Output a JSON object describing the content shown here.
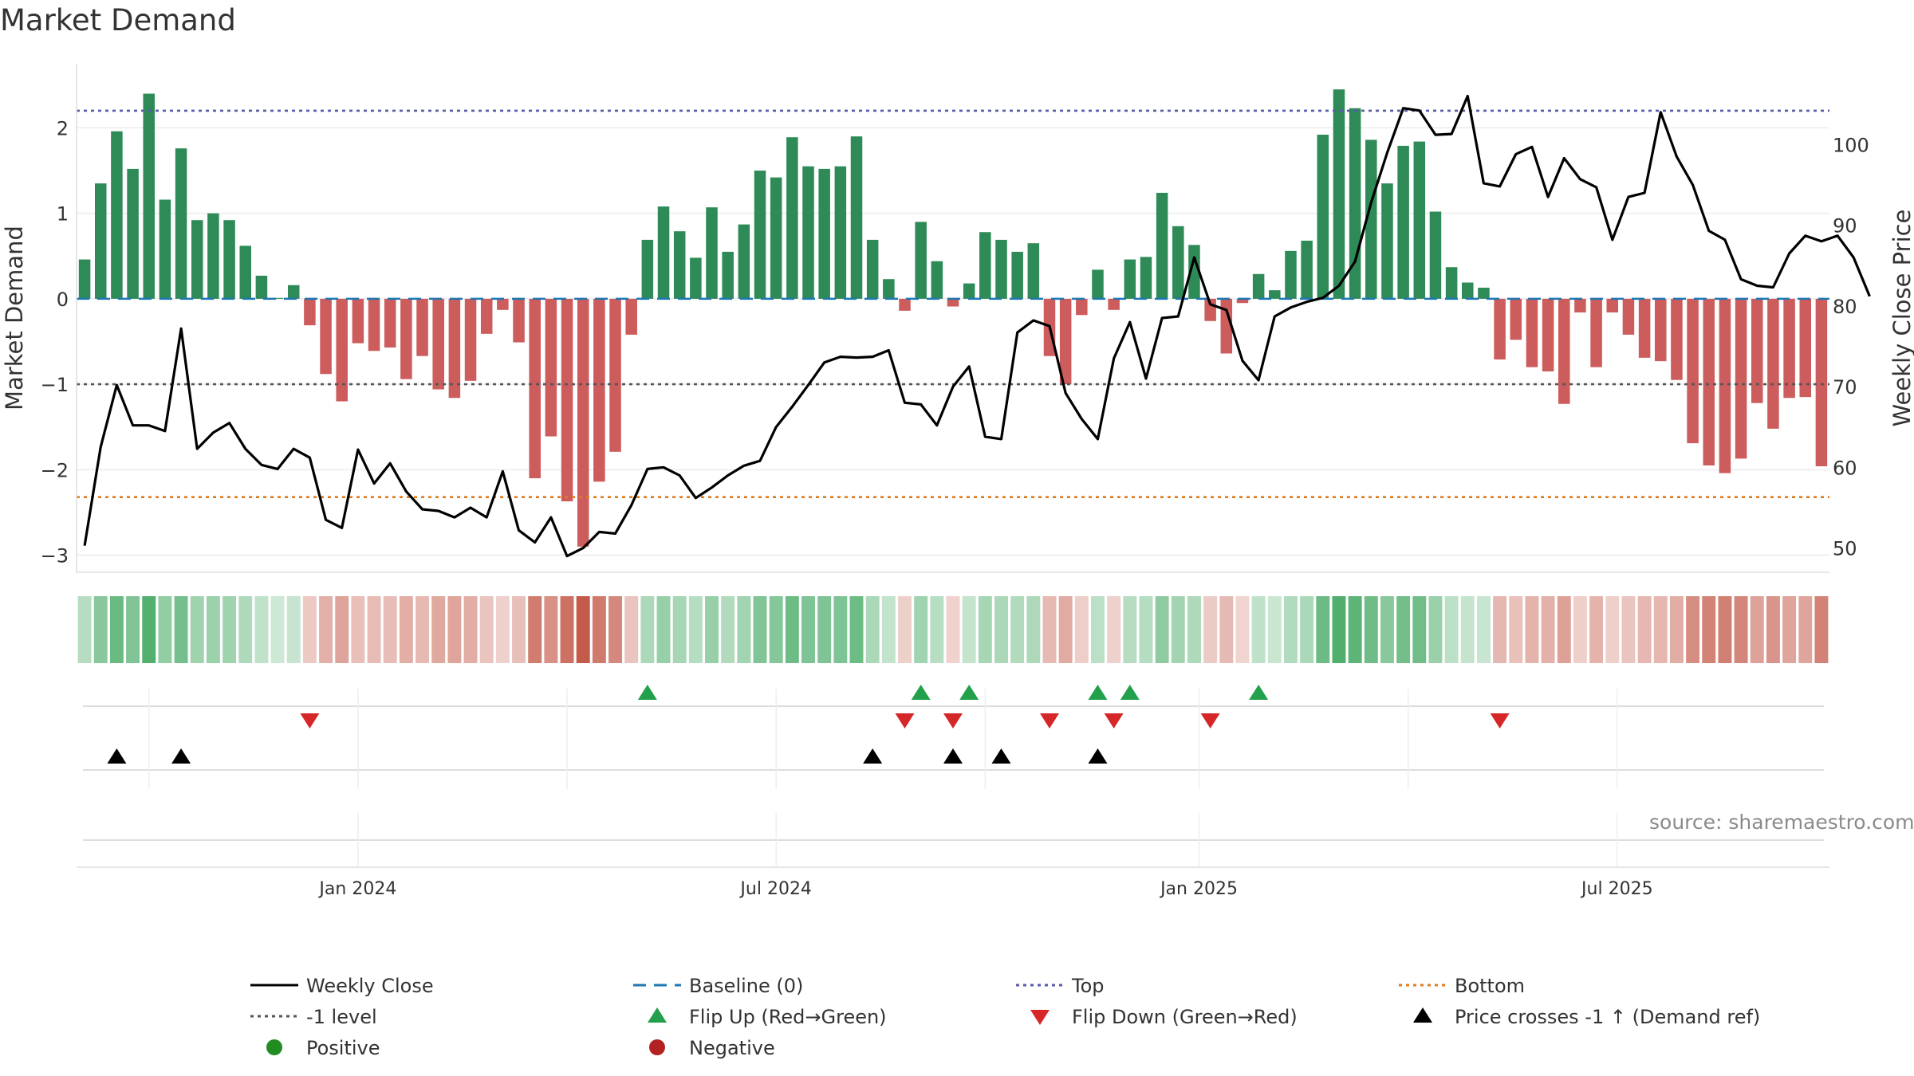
{
  "title": "Market Demand",
  "source": "source: sharemaestro.com",
  "chart_data": {
    "type": "bar",
    "title": "Market Demand",
    "ylabel": "Market Demand",
    "y2label": "Weekly Close Price",
    "ylim": [
      -3.2,
      2.75
    ],
    "y2lim": [
      47,
      110
    ],
    "yticks": [
      -3,
      -2,
      -1,
      0,
      1,
      2
    ],
    "y2ticks": [
      50,
      60,
      70,
      80,
      90,
      100
    ],
    "x_start": "2023-09-10",
    "x_interval": "weekly",
    "xticks": [
      "Jan 2024",
      "Jul 2024",
      "Jan 2025",
      "Jul 2025"
    ],
    "reference_lines": [
      {
        "name": "Baseline (0)",
        "value": 0,
        "color": "#1f77b4",
        "style": "dashed"
      },
      {
        "name": "Top",
        "value": 2.2,
        "color": "#5a5aaa",
        "style": "dotted"
      },
      {
        "name": "-1 level",
        "value": -1,
        "color": "#555555",
        "style": "dotted"
      },
      {
        "name": "Bottom",
        "value": -2.32,
        "color": "#e07b20",
        "style": "dotted"
      }
    ],
    "colors": {
      "positive": "#2e8b57",
      "negative": "#cd5c5c",
      "close": "#000000",
      "flip_up": "#22a04b",
      "flip_down": "#d62728",
      "cross": "#000000",
      "positive_dot": "#228b22",
      "negative_dot": "#b22222"
    },
    "demand": [
      0.46,
      1.35,
      1.96,
      1.52,
      2.4,
      1.16,
      1.76,
      0.92,
      1.0,
      0.92,
      0.62,
      0.27,
      0.01,
      0.16,
      -0.31,
      -0.88,
      -1.2,
      -0.52,
      -0.61,
      -0.57,
      -0.94,
      -0.67,
      -1.06,
      -1.16,
      -0.96,
      -0.41,
      -0.13,
      -0.51,
      -2.1,
      -1.61,
      -2.37,
      -2.9,
      -2.14,
      -1.79,
      -0.42,
      0.69,
      1.08,
      0.79,
      0.48,
      1.07,
      0.55,
      0.87,
      1.5,
      1.42,
      1.89,
      1.55,
      1.52,
      1.55,
      1.9,
      0.69,
      0.23,
      -0.14,
      0.9,
      0.44,
      -0.09,
      0.18,
      0.78,
      0.69,
      0.55,
      0.65,
      -0.67,
      -1.0,
      -0.19,
      0.34,
      -0.13,
      0.46,
      0.49,
      1.24,
      0.85,
      0.63,
      -0.26,
      -0.64,
      -0.05,
      0.29,
      0.1,
      0.56,
      0.68,
      1.92,
      2.45,
      2.23,
      1.86,
      1.35,
      1.79,
      1.84,
      1.02,
      0.37,
      0.19,
      0.13,
      -0.71,
      -0.48,
      -0.8,
      -0.85,
      -1.23,
      -0.16,
      -0.8,
      -0.16,
      -0.42,
      -0.69,
      -0.73,
      -0.95,
      -1.69,
      -1.95,
      -2.04,
      -1.87,
      -1.22,
      -1.52,
      -1.16,
      -1.15,
      -1.96
    ],
    "close": [
      50.3,
      62.5,
      70.2,
      65.2,
      65.2,
      64.5,
      77.2,
      62.3,
      64.3,
      65.5,
      62.3,
      60.3,
      59.8,
      62.3,
      61.2,
      53.5,
      52.5,
      62.2,
      58.0,
      60.5,
      57.0,
      54.8,
      54.6,
      53.8,
      55.0,
      53.8,
      59.5,
      52.2,
      50.7,
      53.8,
      49.0,
      50.0,
      52.0,
      51.8,
      55.3,
      59.8,
      60.0,
      59.0,
      56.2,
      57.5,
      59.0,
      60.2,
      60.8,
      65.0,
      67.5,
      70.2,
      73.0,
      73.7,
      73.6,
      73.7,
      74.5,
      68.0,
      67.8,
      65.2,
      70.0,
      72.5,
      63.8,
      63.5,
      76.7,
      78.2,
      77.5,
      69.2,
      66.0,
      63.5,
      73.5,
      78.0,
      71.0,
      78.5,
      78.7,
      86.0,
      80.2,
      79.5,
      73.2,
      70.8,
      78.7,
      79.8,
      80.5,
      81.0,
      82.5,
      85.5,
      92.8,
      99.0,
      104.5,
      104.2,
      101.2,
      101.3,
      106.0,
      95.2,
      94.8,
      98.8,
      99.7,
      93.5,
      98.3,
      95.7,
      94.7,
      88.2,
      93.5,
      94.0,
      104.0,
      98.5,
      95.0,
      89.3,
      88.2,
      83.3,
      82.5,
      82.3,
      86.5,
      88.7,
      88.0,
      88.7,
      86.0,
      81.2
    ],
    "flip_up": [
      35,
      52,
      55,
      63,
      65,
      73
    ],
    "flip_down": [
      14,
      51,
      54,
      60,
      64,
      70,
      88
    ],
    "price_crosses": [
      2,
      6,
      49,
      54,
      57,
      63
    ],
    "series": [
      {
        "name": "Weekly Close"
      },
      {
        "name": "Baseline (0)"
      },
      {
        "name": "Top"
      },
      {
        "name": "Bottom"
      },
      {
        "name": "-1 level"
      },
      {
        "name": "Flip Up (Red→Green)"
      },
      {
        "name": "Flip Down (Green→Red)"
      },
      {
        "name": "Price crosses -1 ↑ (Demand ref)"
      },
      {
        "name": "Positive"
      },
      {
        "name": "Negative"
      }
    ]
  },
  "legend": [
    {
      "label": "Weekly Close",
      "symbol": "solid-line",
      "color": "#000000"
    },
    {
      "label": "Baseline (0)",
      "symbol": "dashed-line",
      "color": "#1f77b4"
    },
    {
      "label": "Top",
      "symbol": "dotted-line",
      "color": "#5a5aaa"
    },
    {
      "label": "Bottom",
      "symbol": "dotted-line",
      "color": "#e07b20"
    },
    {
      "label": "-1 level",
      "symbol": "dotted-line",
      "color": "#555555"
    },
    {
      "label": "Flip Up (Red→Green)",
      "symbol": "triangle-up",
      "color": "#22a04b"
    },
    {
      "label": "Flip Down (Green→Red)",
      "symbol": "triangle-down",
      "color": "#d62728"
    },
    {
      "label": "Price crosses -1 ↑ (Demand ref)",
      "symbol": "triangle-up",
      "color": "#000000"
    },
    {
      "label": "Positive",
      "symbol": "circle",
      "color": "#228b22"
    },
    {
      "label": "Negative",
      "symbol": "circle",
      "color": "#b22222"
    }
  ]
}
